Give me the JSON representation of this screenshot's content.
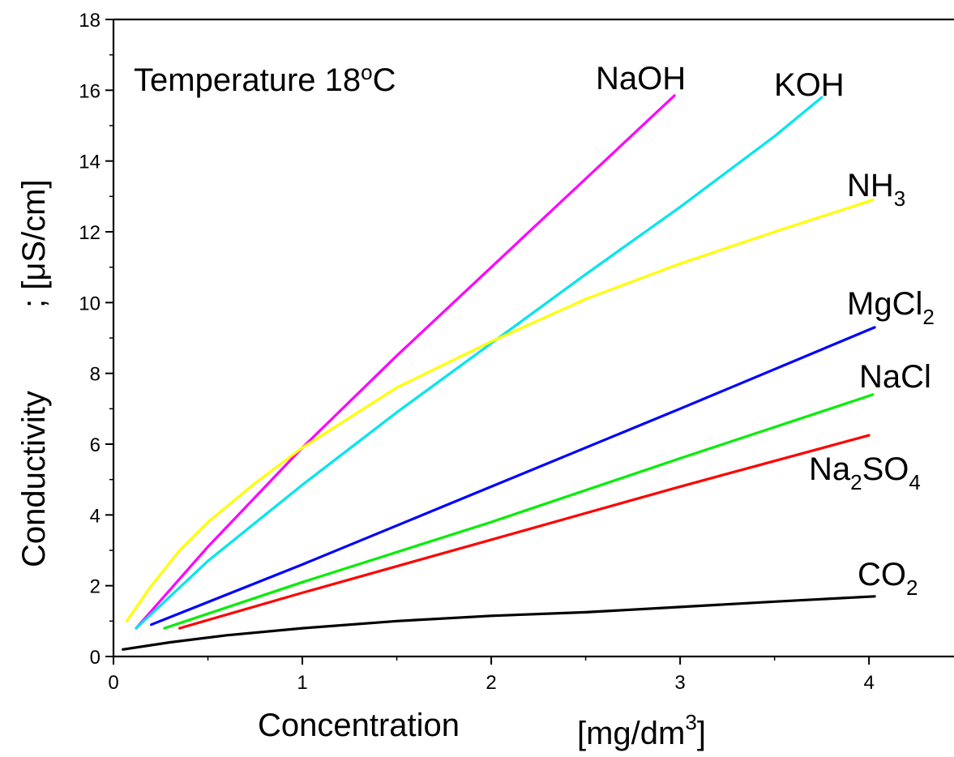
{
  "chart_data": {
    "type": "line",
    "xlabel": "Concentration",
    "xunit": "[mg/dm",
    "xunit_sup": "3",
    "xunit_end": "]",
    "ylabel": "Conductivity",
    "yunit": "; [μS/cm]",
    "xlim": [
      0,
      4.45
    ],
    "ylim": [
      0,
      18
    ],
    "xticks": [
      0,
      1,
      2,
      3,
      4
    ],
    "yticks": [
      0,
      2,
      4,
      6,
      8,
      10,
      12,
      14,
      16,
      18
    ],
    "annotation": {
      "text": "Temperature 18",
      "sup": "o",
      "end": "C"
    },
    "series": [
      {
        "name": "NaOH",
        "color": "#ff00ff",
        "x": [
          0.12,
          0.5,
          1.0,
          1.5,
          2.0,
          2.5,
          2.97
        ],
        "y": [
          0.8,
          3.1,
          5.9,
          8.5,
          11.0,
          13.5,
          15.85
        ]
      },
      {
        "name": "KOH",
        "color": "#00e5ee",
        "x": [
          0.12,
          0.5,
          1.0,
          1.5,
          2.0,
          2.5,
          3.0,
          3.5,
          3.75
        ],
        "y": [
          0.8,
          2.7,
          4.85,
          6.9,
          8.85,
          10.8,
          12.7,
          14.7,
          15.8
        ]
      },
      {
        "name": "NH",
        "sub": "3",
        "color": "#ffff00",
        "x": [
          0.07,
          0.2,
          0.35,
          0.5,
          0.75,
          1.0,
          1.5,
          2.0,
          2.5,
          3.0,
          3.5,
          4.02
        ],
        "y": [
          1.0,
          2.0,
          3.0,
          3.8,
          4.9,
          5.9,
          7.6,
          8.9,
          10.1,
          11.1,
          12.0,
          12.9
        ]
      },
      {
        "name": "MgCl",
        "sub": "2",
        "color": "#0000ff",
        "x": [
          0.2,
          1.0,
          2.0,
          3.0,
          4.03
        ],
        "y": [
          0.9,
          2.6,
          4.8,
          7.0,
          9.3
        ]
      },
      {
        "name": "NaCl",
        "color": "#00ee00",
        "x": [
          0.27,
          1.0,
          2.0,
          3.0,
          4.02
        ],
        "y": [
          0.8,
          2.1,
          3.8,
          5.6,
          7.4
        ]
      },
      {
        "name": "Na",
        "sub": "2",
        "name2": "SO",
        "sub2": "4",
        "color": "#ff0000",
        "x": [
          0.35,
          1.0,
          2.0,
          3.0,
          4.0
        ],
        "y": [
          0.8,
          1.8,
          3.3,
          4.8,
          6.25
        ]
      },
      {
        "name": "CO",
        "sub": "2",
        "color": "#000000",
        "x": [
          0.05,
          0.3,
          0.6,
          1.0,
          1.5,
          2.0,
          2.5,
          3.0,
          3.5,
          4.03
        ],
        "y": [
          0.2,
          0.4,
          0.6,
          0.8,
          1.0,
          1.15,
          1.25,
          1.4,
          1.55,
          1.7
        ]
      }
    ]
  }
}
